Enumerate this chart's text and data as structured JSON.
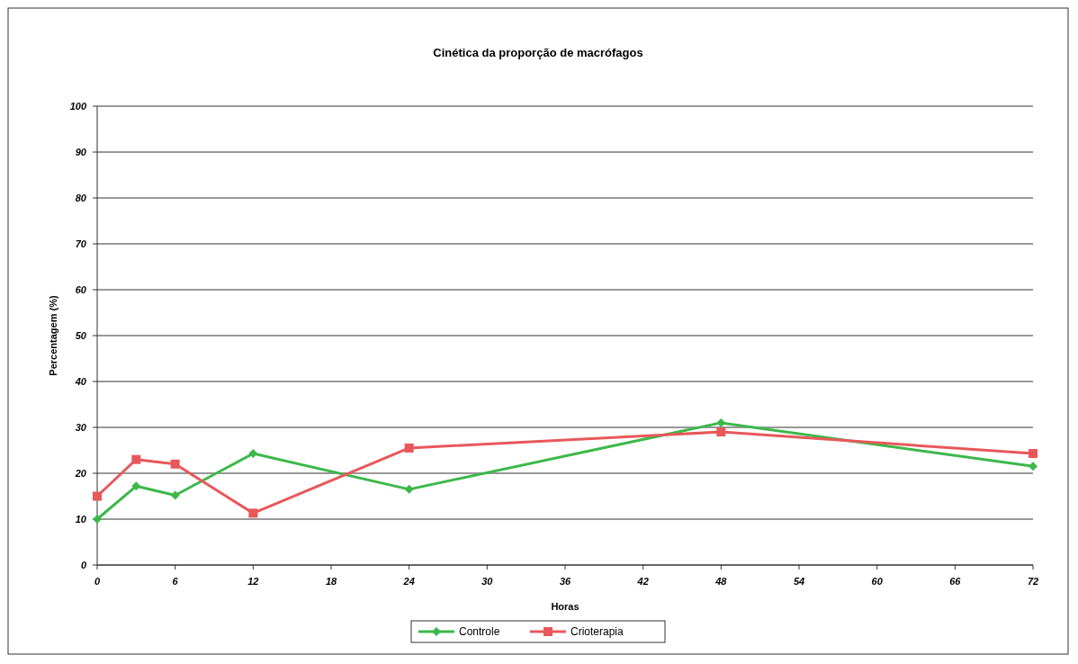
{
  "chart_data": {
    "type": "line",
    "title": "Cinética da proporção de macrófagos",
    "xlabel": "Horas",
    "ylabel": "Percentagem (%)",
    "x": [
      0,
      3,
      6,
      12,
      24,
      48,
      72
    ],
    "series": [
      {
        "name": "Controle",
        "color": "#3cb84a",
        "marker": "diamond",
        "values": [
          10,
          17.2,
          15.2,
          24.3,
          16.5,
          31,
          21.5
        ]
      },
      {
        "name": "Crioterapia",
        "color": "#e8585a",
        "marker": "square",
        "values": [
          15,
          23,
          22,
          11.3,
          25.5,
          29,
          24.3
        ]
      }
    ],
    "xlim": [
      0,
      72
    ],
    "xticks": [
      0,
      6,
      12,
      18,
      24,
      30,
      36,
      42,
      48,
      54,
      60,
      66,
      72
    ],
    "ylim": [
      0,
      100
    ],
    "yticks": [
      0,
      10,
      20,
      30,
      40,
      50,
      60,
      70,
      80,
      90,
      100
    ],
    "grid": "y",
    "legend": "bottom"
  }
}
